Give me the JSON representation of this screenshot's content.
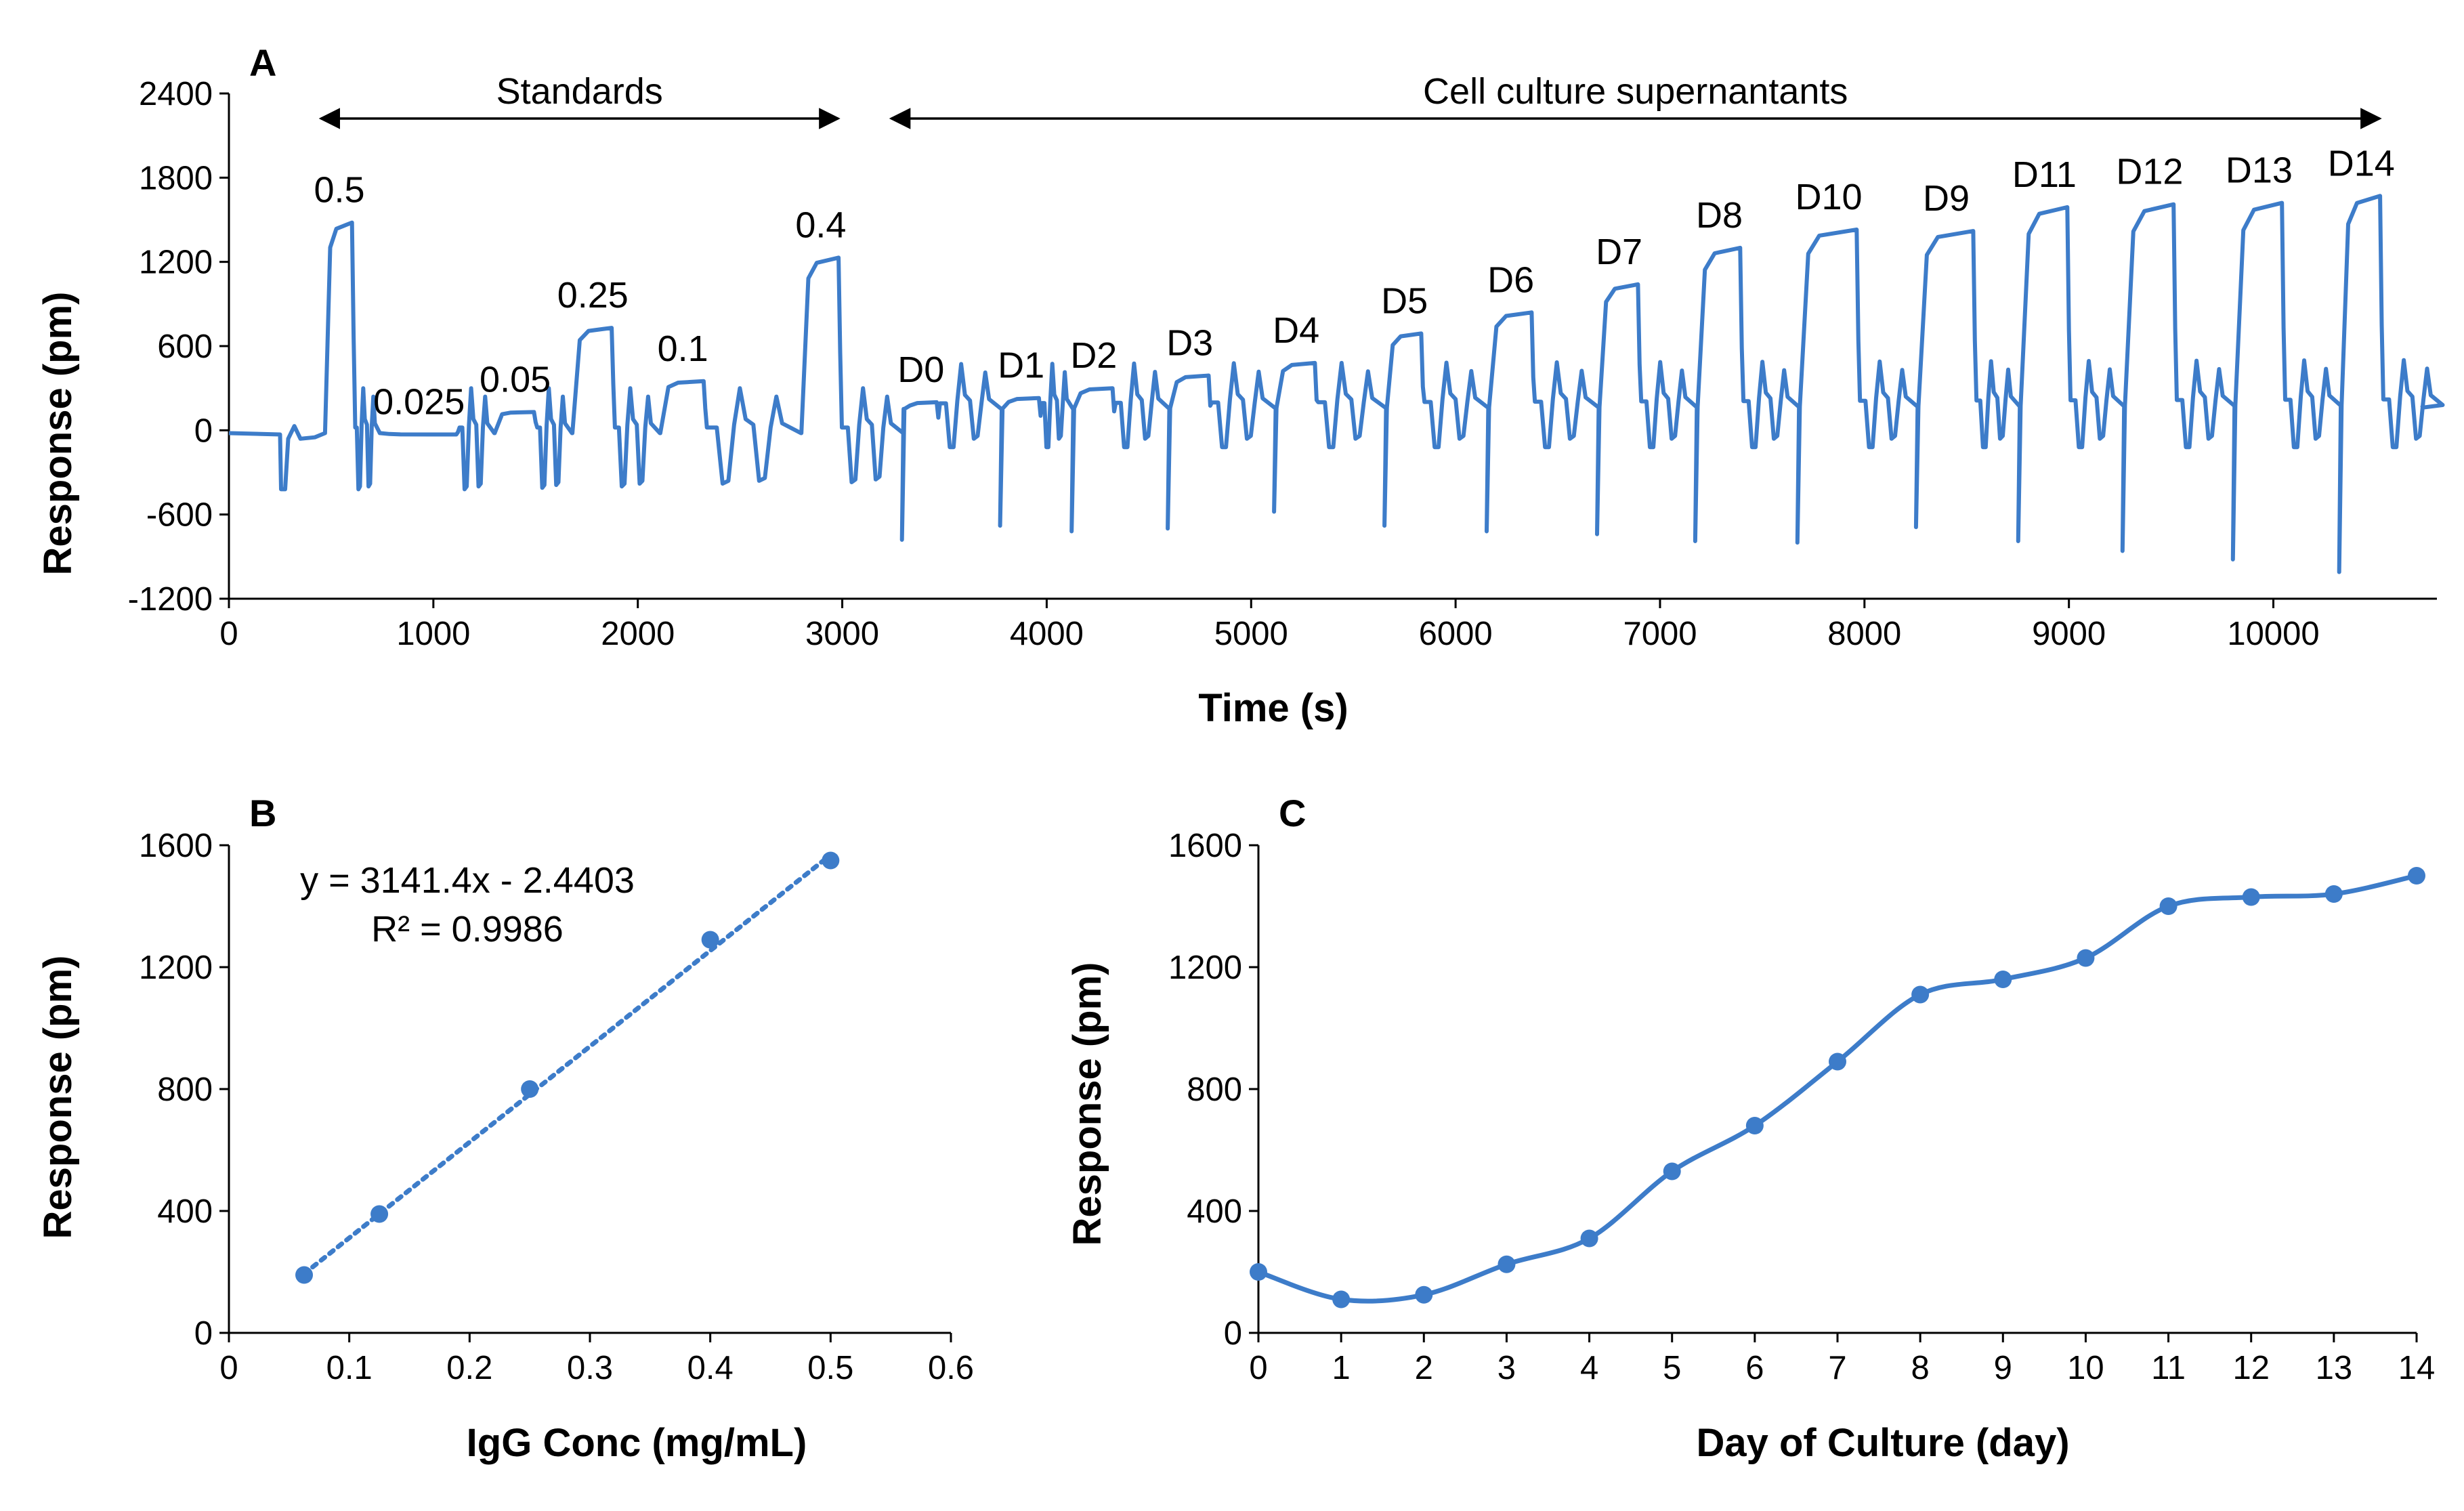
{
  "chart_data": [
    {
      "panel": "A",
      "type": "line",
      "xlabel": "Time (s)",
      "ylabel": "Response (pm)",
      "xlim": [
        0,
        10800
      ],
      "ylim": [
        -1200,
        2400
      ],
      "xticks": [
        0,
        1000,
        2000,
        3000,
        4000,
        5000,
        6000,
        7000,
        8000,
        9000,
        10000
      ],
      "yticks": [
        -1200,
        -600,
        0,
        600,
        1200,
        1800,
        2400
      ],
      "grid": false,
      "color": "#3d7cc9",
      "groups": [
        {
          "label": "Standards",
          "x_start": 450,
          "x_end": 2980
        },
        {
          "label": "Cell culture supernantants",
          "x_start": 3240,
          "x_end": 10520
        }
      ],
      "peaks": [
        {
          "label": "0.5",
          "x_start": 470,
          "x_end": 610,
          "plateau": 1480,
          "dip": -420
        },
        {
          "label": "0.025",
          "x_start": 740,
          "x_end": 1120,
          "plateau": -30,
          "dip": -420
        },
        {
          "label": "0.05",
          "x_start": 1300,
          "x_end": 1500,
          "plateau": 130,
          "dip": -410
        },
        {
          "label": "0.25",
          "x_start": 1680,
          "x_end": 1880,
          "plateau": 730,
          "dip": -400
        },
        {
          "label": "0.1",
          "x_start": 2110,
          "x_end": 2330,
          "plateau": 350,
          "dip": -380
        },
        {
          "label": "0.4",
          "x_start": 2800,
          "x_end": 2990,
          "plateau": 1230,
          "dip": -370
        },
        {
          "label": "D0",
          "x_start": 3300,
          "x_end": 3470,
          "plateau": 200,
          "dip": -780
        },
        {
          "label": "D1",
          "x_start": 3780,
          "x_end": 3970,
          "plateau": 230,
          "dip": -680
        },
        {
          "label": "D2",
          "x_start": 4130,
          "x_end": 4330,
          "plateau": 300,
          "dip": -720
        },
        {
          "label": "D3",
          "x_start": 4600,
          "x_end": 4800,
          "plateau": 390,
          "dip": -700
        },
        {
          "label": "D4",
          "x_start": 5120,
          "x_end": 5320,
          "plateau": 480,
          "dip": -580
        },
        {
          "label": "D5",
          "x_start": 5660,
          "x_end": 5840,
          "plateau": 690,
          "dip": -680
        },
        {
          "label": "D6",
          "x_start": 6160,
          "x_end": 6380,
          "plateau": 840,
          "dip": -720
        },
        {
          "label": "D7",
          "x_start": 6700,
          "x_end": 6900,
          "plateau": 1040,
          "dip": -740
        },
        {
          "label": "D8",
          "x_start": 7180,
          "x_end": 7400,
          "plateau": 1300,
          "dip": -790
        },
        {
          "label": "D10",
          "x_start": 7680,
          "x_end": 7970,
          "plateau": 1430,
          "dip": -800
        },
        {
          "label": "D9",
          "x_start": 8260,
          "x_end": 8540,
          "plateau": 1420,
          "dip": -690
        },
        {
          "label": "D11",
          "x_start": 8760,
          "x_end": 9000,
          "plateau": 1590,
          "dip": -790
        },
        {
          "label": "D12",
          "x_start": 9270,
          "x_end": 9520,
          "plateau": 1610,
          "dip": -860
        },
        {
          "label": "D13",
          "x_start": 9810,
          "x_end": 10050,
          "plateau": 1620,
          "dip": -920
        },
        {
          "label": "D14",
          "x_start": 10330,
          "x_end": 10530,
          "plateau": 1670,
          "dip": -1010
        }
      ]
    },
    {
      "panel": "B",
      "type": "scatter",
      "xlabel": "IgG Conc (mg/mL)",
      "ylabel": "Response (pm)",
      "xlim": [
        0,
        0.6
      ],
      "ylim": [
        0,
        1600
      ],
      "xticks": [
        "0",
        "0.1",
        "0.2",
        "0.3",
        "0.4",
        "0.5",
        "0.6"
      ],
      "yticks": [
        "0",
        "400",
        "800",
        "1200",
        "1600"
      ],
      "grid": false,
      "color": "#3d7cc9",
      "points": [
        {
          "x": 0.0625,
          "y": 190
        },
        {
          "x": 0.125,
          "y": 390
        },
        {
          "x": 0.25,
          "y": 800
        },
        {
          "x": 0.4,
          "y": 1290
        },
        {
          "x": 0.5,
          "y": 1550
        }
      ],
      "trendline": {
        "slope": 3141.4,
        "intercept": -2.4403,
        "x_start": 0.0625,
        "x_end": 0.5,
        "style": "dotted"
      },
      "equation": "y = 3141.4x - 2.4403",
      "r_squared": "R² = 0.9986"
    },
    {
      "panel": "C",
      "type": "line",
      "xlabel": "Day of Culture (day)",
      "ylabel": "Response (pm)",
      "xlim": [
        0,
        14
      ],
      "ylim": [
        0,
        1600
      ],
      "xticks": [
        "0",
        "1",
        "2",
        "3",
        "4",
        "5",
        "6",
        "7",
        "8",
        "9",
        "10",
        "11",
        "12",
        "13",
        "14"
      ],
      "yticks": [
        "0",
        "400",
        "800",
        "1200",
        "1600"
      ],
      "grid": false,
      "color": "#3d7cc9",
      "x": [
        0,
        1,
        2,
        3,
        4,
        5,
        6,
        7,
        8,
        9,
        10,
        11,
        12,
        13,
        14
      ],
      "y": [
        200,
        110,
        125,
        225,
        310,
        530,
        680,
        890,
        1110,
        1160,
        1230,
        1400,
        1430,
        1440,
        1500
      ]
    }
  ]
}
